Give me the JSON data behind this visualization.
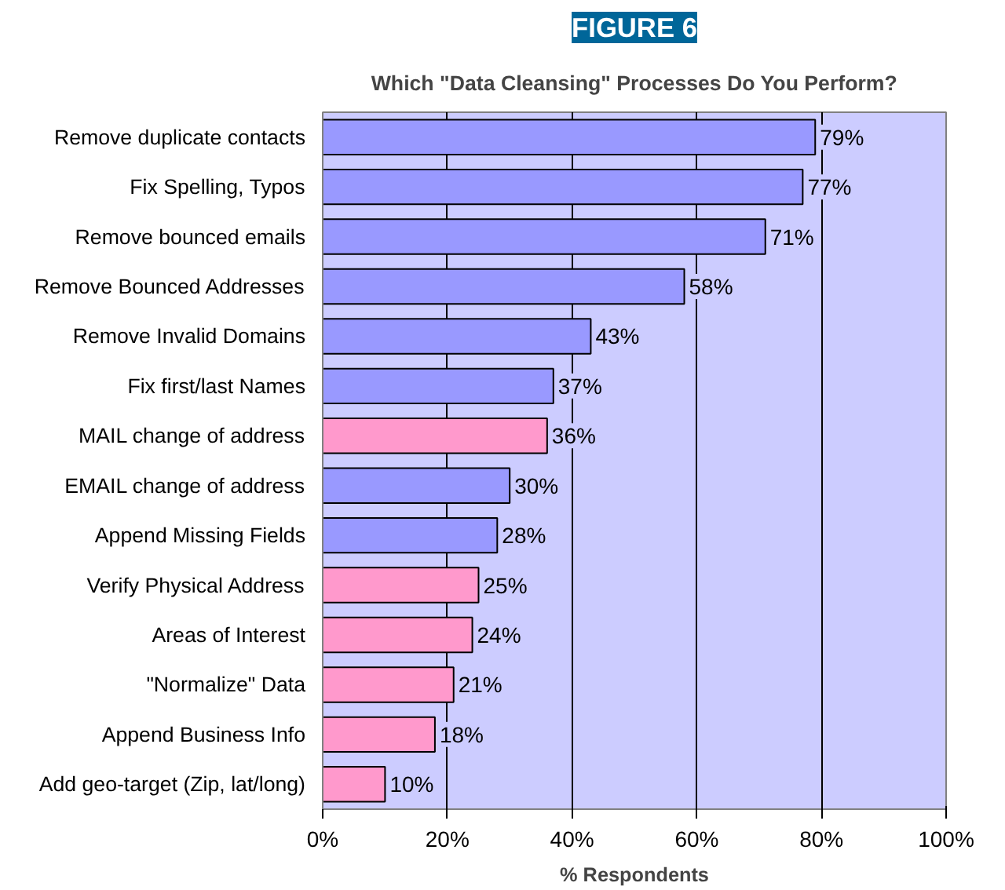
{
  "chart_data": {
    "type": "bar",
    "orientation": "horizontal",
    "title": "FIGURE 6",
    "subtitle": "Which \"Data Cleansing\" Processes Do You Perform?",
    "xlabel": "% Respondents",
    "categories": [
      "Remove duplicate contacts",
      "Fix Spelling, Typos",
      "Remove bounced emails",
      "Remove Bounced Addresses",
      "Remove Invalid Domains",
      "Fix first/last Names",
      "MAIL change of address",
      "EMAIL change of address",
      "Append Missing Fields",
      "Verify Physical Address",
      "Areas of Interest",
      "\"Normalize\" Data",
      "Append Business Info",
      "Add geo-target (Zip, lat/long)"
    ],
    "values": [
      79,
      77,
      71,
      58,
      43,
      37,
      36,
      30,
      28,
      25,
      24,
      21,
      18,
      10
    ],
    "value_labels": [
      "79%",
      "77%",
      "71%",
      "58%",
      "43%",
      "37%",
      "36%",
      "30%",
      "28%",
      "25%",
      "24%",
      "21%",
      "18%",
      "10%"
    ],
    "colors": [
      "#9999ff",
      "#9999ff",
      "#9999ff",
      "#9999ff",
      "#9999ff",
      "#9999ff",
      "#ff99cc",
      "#9999ff",
      "#9999ff",
      "#ff99cc",
      "#ff99cc",
      "#ff99cc",
      "#ff99cc",
      "#ff99cc"
    ],
    "xlim": [
      0,
      100
    ],
    "xticks": [
      {
        "value": 0,
        "label": "0%"
      },
      {
        "value": 20,
        "label": "20%"
      },
      {
        "value": 40,
        "label": "40%"
      },
      {
        "value": 60,
        "label": "60%"
      },
      {
        "value": 80,
        "label": "80%"
      },
      {
        "value": 100,
        "label": "100%"
      }
    ],
    "grid": "x"
  }
}
